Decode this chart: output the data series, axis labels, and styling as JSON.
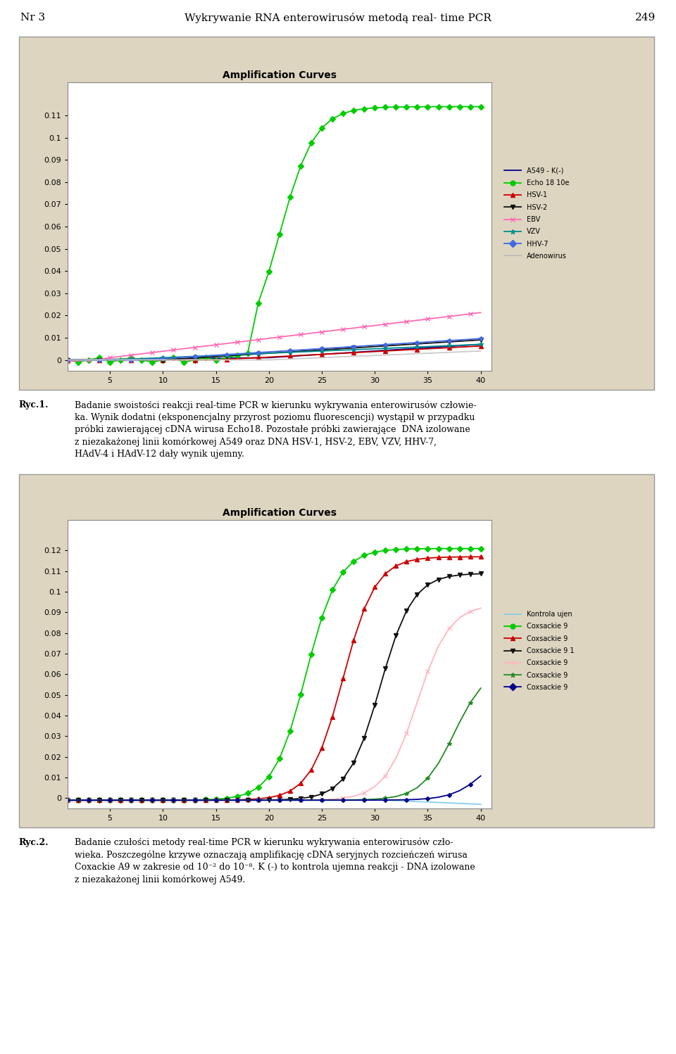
{
  "fig_width": 9.6,
  "fig_height": 14.98,
  "title": "Amplification Curves",
  "title_fontsize": 10,
  "title_fontweight": "bold",
  "header_text": "Wykrywanie RNA enterowirusów metodą real- time PCR",
  "header_nr": "Nr 3",
  "header_page": "249",
  "fig1_caption_label": "Ryc.1.",
  "fig1_caption": "Badanie swoistości reakcji real-time PCR w kierunku wykrywania enterowirusów człowie-\nka. Wynik dodatni (eksponencjalny przyrost poziomu fluorescencji) wystąpił w przypadku\npróbki zawierającej cDNA wirusa Echo18. Pozostałe próbki zawierające  DNA izolowane\nz niezakażonej linii komórkowej A549 oraz DNA HSV-1, HSV-2, EBV, VZV, HHV-7,\nHAdV-4 i HAdV-12 dały wynik ujemny.",
  "fig2_caption_label": "Ryc.2.",
  "fig2_caption": "Badanie czułości metody real-time PCR w kierunku wykrywania enterowirusów czło-\nwieka. Poszczególne krzywe oznaczają amplifikację cDNA seryjnych rozcieńczeń wirusa\nCoxackie A9 w zakresie od 10⁻² do 10⁻⁸. K (-) to kontrola ujemna reakcji - DNA izolowane\nz niezakażonej linii komórkowej A549.",
  "xticks": [
    5,
    10,
    15,
    20,
    25,
    30,
    35,
    40
  ],
  "fig1_ylim": [
    -0.005,
    0.125
  ],
  "fig1_yticks": [
    0,
    0.01,
    0.02,
    0.03,
    0.04,
    0.05,
    0.06,
    0.07,
    0.08,
    0.09,
    0.1,
    0.11
  ],
  "fig1_yticklabels": [
    "0",
    "0.01",
    "0.02",
    "0.03",
    "0.04",
    "0.05",
    "0.06",
    "0.07",
    "0.08",
    "0.09",
    "0.1",
    "0.11"
  ],
  "fig2_ylim": [
    -0.005,
    0.135
  ],
  "fig2_yticks": [
    0,
    0.01,
    0.02,
    0.03,
    0.04,
    0.05,
    0.06,
    0.07,
    0.08,
    0.09,
    0.1,
    0.11,
    0.12
  ],
  "fig2_yticklabels": [
    "0",
    "0.01",
    "0.02",
    "0.03",
    "0.04",
    "0.05",
    "0.06",
    "0.07",
    "0.08",
    "0.09",
    "0.1",
    "0.11",
    "0.12"
  ],
  "legend1_labels": [
    "A549 - K(-)",
    "Echo 18 10e",
    "HSV-1",
    "HSV-2",
    "EBV",
    "VZV",
    "HHV-7",
    "Adenowirus"
  ],
  "legend1_colors": [
    "#00008B",
    "#00CC00",
    "#CC0000",
    "#111111",
    "#FF69B4",
    "#008B8B",
    "#4169E1",
    "#BBBBBB"
  ],
  "legend1_markers": [
    null,
    "o",
    "^",
    "v",
    "x",
    "*",
    "D",
    null
  ],
  "legend2_labels": [
    "Kontrola ujen",
    "Coxsackie 9",
    "Coxsackie 9",
    "Coxsackie 9 1",
    "Coxsackie 9",
    "Coxsackie 9",
    "Coxsackie 9"
  ],
  "legend2_colors": [
    "#87CEEB",
    "#00CC00",
    "#CC0000",
    "#111111",
    "#FFB6C1",
    "#228B22",
    "#00008B"
  ],
  "legend2_markers": [
    null,
    "o",
    "^",
    "v",
    "x",
    "*",
    "D"
  ]
}
